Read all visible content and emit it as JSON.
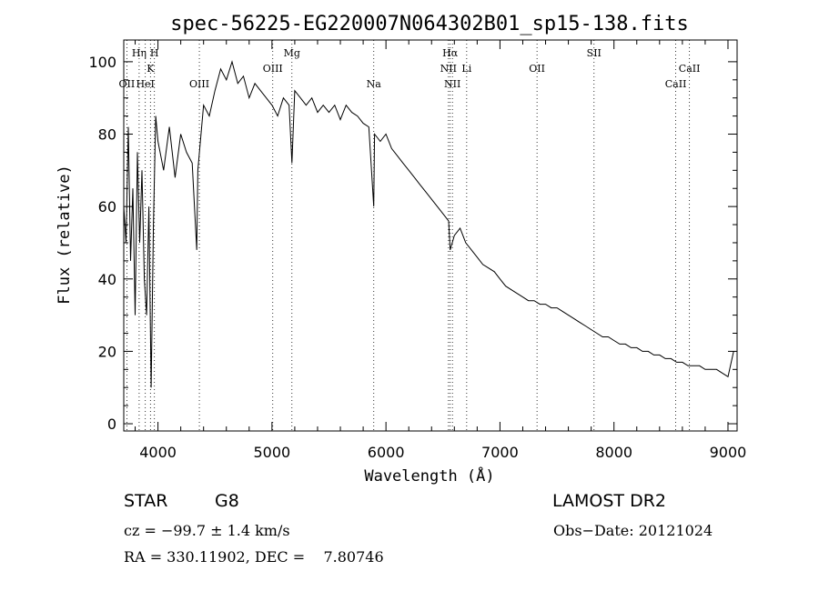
{
  "chart_data": {
    "type": "line",
    "title": "spec-56225-EG220007N064302B01_sp15-138.fits",
    "xlabel": "Wavelength (Å)",
    "ylabel": "Flux (relative)",
    "xlim": [
      3700,
      9080
    ],
    "ylim": [
      -2,
      106
    ],
    "x_ticks": [
      4000,
      5000,
      6000,
      7000,
      8000,
      9000
    ],
    "y_ticks": [
      0,
      20,
      40,
      60,
      80,
      100
    ],
    "grid": false,
    "series": [
      {
        "x": [
          3700,
          3720,
          3740,
          3760,
          3780,
          3800,
          3820,
          3840,
          3860,
          3880,
          3900,
          3920,
          3940,
          3960,
          3980,
          4000,
          4050,
          4100,
          4150,
          4200,
          4250,
          4300,
          4340,
          4350,
          4400,
          4450,
          4500,
          4550,
          4600,
          4650,
          4700,
          4750,
          4800,
          4850,
          4900,
          4950,
          5000,
          5050,
          5100,
          5150,
          5175,
          5200,
          5250,
          5300,
          5350,
          5400,
          5450,
          5500,
          5550,
          5600,
          5650,
          5700,
          5750,
          5800,
          5850,
          5893,
          5900,
          5950,
          6000,
          6050,
          6100,
          6150,
          6200,
          6250,
          6300,
          6350,
          6400,
          6450,
          6500,
          6550,
          6563,
          6600,
          6650,
          6700,
          6750,
          6800,
          6850,
          6900,
          6950,
          7000,
          7050,
          7100,
          7150,
          7200,
          7250,
          7300,
          7350,
          7400,
          7450,
          7500,
          7550,
          7600,
          7650,
          7700,
          7750,
          7800,
          7850,
          7900,
          7950,
          8000,
          8050,
          8100,
          8150,
          8200,
          8250,
          8300,
          8350,
          8400,
          8450,
          8500,
          8550,
          8600,
          8650,
          8700,
          8750,
          8800,
          8850,
          8900,
          8950,
          9000,
          9050
        ],
        "y": [
          60,
          50,
          82,
          45,
          65,
          30,
          75,
          50,
          70,
          40,
          30,
          60,
          10,
          55,
          85,
          78,
          70,
          82,
          68,
          80,
          75,
          72,
          48,
          70,
          88,
          85,
          92,
          98,
          95,
          100,
          94,
          96,
          90,
          94,
          92,
          90,
          88,
          85,
          90,
          88,
          72,
          92,
          90,
          88,
          90,
          86,
          88,
          86,
          88,
          84,
          88,
          86,
          85,
          83,
          82,
          60,
          80,
          78,
          80,
          76,
          74,
          72,
          70,
          68,
          66,
          64,
          62,
          60,
          58,
          56,
          48,
          52,
          54,
          50,
          48,
          46,
          44,
          43,
          42,
          40,
          38,
          37,
          36,
          35,
          34,
          34,
          33,
          33,
          32,
          32,
          31,
          30,
          29,
          28,
          27,
          26,
          25,
          24,
          24,
          23,
          22,
          22,
          21,
          21,
          20,
          20,
          19,
          19,
          18,
          18,
          17,
          17,
          16,
          16,
          16,
          15,
          15,
          15,
          14,
          13,
          20
        ]
      }
    ],
    "lines": [
      {
        "label": "OII",
        "x": 3727,
        "row": 3
      },
      {
        "label": "Hη",
        "x": 3835,
        "row": 1
      },
      {
        "label": "HeI",
        "x": 3889,
        "row": 3
      },
      {
        "label": "K",
        "x": 3934,
        "row": 2
      },
      {
        "label": "H",
        "x": 3969,
        "row": 1
      },
      {
        "label": "OIII",
        "x": 4363,
        "row": 3
      },
      {
        "label": "OIII",
        "x": 5007,
        "row": 2
      },
      {
        "label": "Mg",
        "x": 5175,
        "row": 1
      },
      {
        "label": "Na",
        "x": 5893,
        "row": 3
      },
      {
        "label": "NII",
        "x": 6548,
        "row": 2
      },
      {
        "label": "Hα",
        "x": 6563,
        "row": 1
      },
      {
        "label": "NII",
        "x": 6583,
        "row": 3
      },
      {
        "label": "Li",
        "x": 6708,
        "row": 2
      },
      {
        "label": "OII",
        "x": 7325,
        "row": 2
      },
      {
        "label": "SII",
        "x": 7825,
        "row": 1
      },
      {
        "label": "CaII",
        "x": 8542,
        "row": 3
      },
      {
        "label": "CaII",
        "x": 8662,
        "row": 2
      }
    ]
  },
  "info": {
    "object_type": "STAR",
    "object_class": "G8",
    "survey": "LAMOST DR2",
    "redshift": "cz = −99.7 ± 1.4 km/s",
    "obs_date": "Obs−Date: 20121024",
    "coords": "RA = 330.11902, DEC =    7.80746"
  }
}
